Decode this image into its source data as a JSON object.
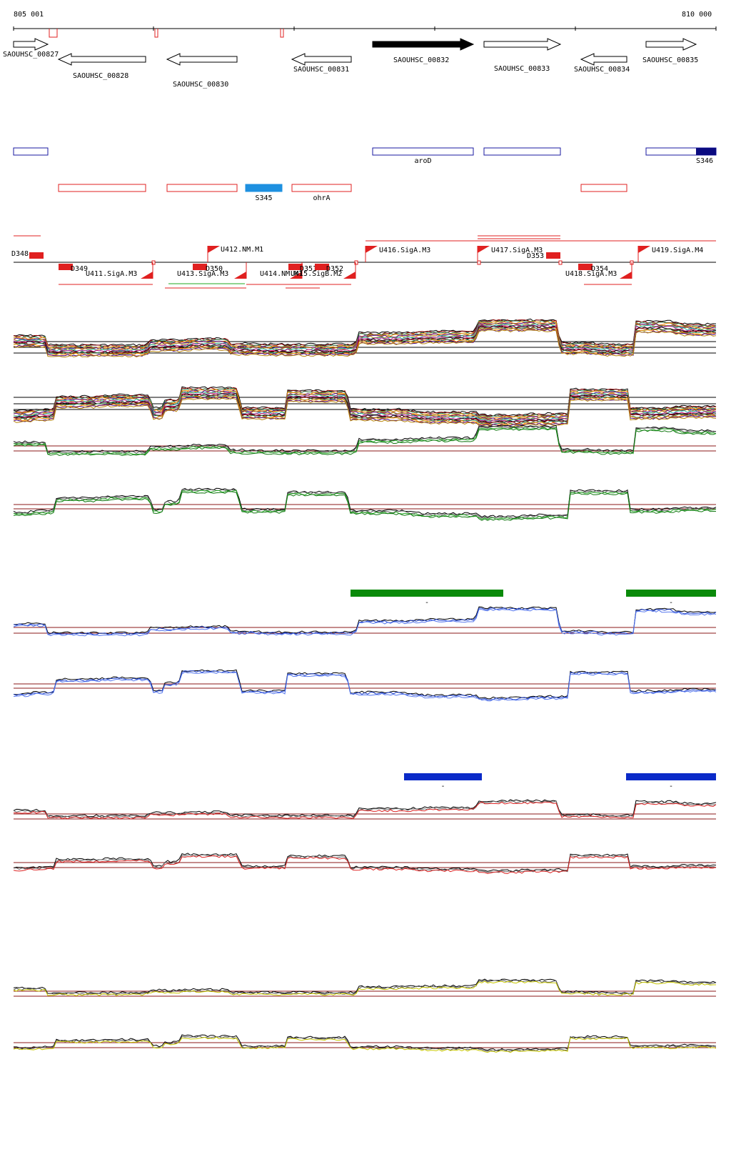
{
  "ruler": {
    "start_label": "805 001",
    "end_label": "810 000"
  },
  "genes": [
    {
      "name": "SAOUHSC_00827",
      "strand": "+",
      "filled": false
    },
    {
      "name": "SAOUHSC_00828",
      "strand": "-",
      "filled": false
    },
    {
      "name": "SAOUHSC_00830",
      "strand": "-",
      "filled": false
    },
    {
      "name": "SAOUHSC_00831",
      "strand": "-",
      "filled": false
    },
    {
      "name": "SAOUHSC_00832",
      "strand": "+",
      "filled": true
    },
    {
      "name": "SAOUHSC_00833",
      "strand": "+",
      "filled": false
    },
    {
      "name": "SAOUHSC_00834",
      "strand": "-",
      "filled": false
    },
    {
      "name": "SAOUHSC_00835",
      "strand": "+",
      "filled": false
    }
  ],
  "features_plus": [
    {
      "label": "",
      "color": "#1a1aa0"
    },
    {
      "label": "aroD",
      "color": "#1a1aa0"
    },
    {
      "label": "",
      "color": "#1a1aa0"
    },
    {
      "label": "S346",
      "color": "#1a1aa0"
    }
  ],
  "features_minus": [
    {
      "label": "",
      "color": "#e02020"
    },
    {
      "label": "",
      "color": "#e02020"
    },
    {
      "label": "S345",
      "color": "#1e90e0"
    },
    {
      "label": "ohrA",
      "color": "#e02020"
    },
    {
      "label": "",
      "color": "#e02020"
    }
  ],
  "promoters_top": [
    {
      "label": "D348"
    },
    {
      "label": "U412.NM.M1"
    },
    {
      "label": "U416.SigA.M3"
    },
    {
      "label": "U417.SigA.M3"
    },
    {
      "label": "D353"
    },
    {
      "label": "U419.SigA.M4"
    }
  ],
  "promoters_bottom": [
    {
      "label": "D349"
    },
    {
      "label": "U411.SigA.M3"
    },
    {
      "label": "D350"
    },
    {
      "label": "U413.SigA.M3"
    },
    {
      "label": "U414.NM.M1"
    },
    {
      "label": "D351"
    },
    {
      "label": "U415.SigB.M2"
    },
    {
      "label": "D352"
    },
    {
      "label": "D354"
    },
    {
      "label": "U418.SigA.M3"
    }
  ],
  "colors": {
    "gene_outline": "#000000",
    "plus_feature": "#1a1aa0",
    "minus_feature": "#e02020",
    "green_bar": "#0a8a0a",
    "blue_bar": "#0a2ac8",
    "guide_line": "#8b1a1a",
    "track_black": "#000000"
  },
  "condition_bars": [
    {
      "color": "#0a8a0a",
      "label": "-"
    },
    {
      "color": "#0a8a0a",
      "label": "-"
    },
    {
      "color": "#0a2ac8",
      "label": "-"
    },
    {
      "color": "#0a2ac8",
      "label": "-"
    }
  ],
  "tracks": [
    {
      "name": "multi-plus",
      "colors": [
        "#000000",
        "#8b0000",
        "#2e8b57",
        "#ff8c00",
        "#4b0082",
        "#b8860b",
        "#20b2aa",
        "#c71585"
      ]
    },
    {
      "name": "multi-minus",
      "colors": [
        "#000000",
        "#8b0000",
        "#2e8b57",
        "#ff8c00",
        "#4b0082",
        "#b8860b",
        "#20b2aa",
        "#c71585"
      ]
    },
    {
      "name": "green-plus",
      "colors": [
        "#000000",
        "#555555",
        "#22aa22",
        "#117711"
      ]
    },
    {
      "name": "green-minus",
      "colors": [
        "#000000",
        "#555555",
        "#22aa22",
        "#117711"
      ]
    },
    {
      "name": "blue-plus",
      "colors": [
        "#000000",
        "#2244cc",
        "#5577ee"
      ]
    },
    {
      "name": "blue-minus",
      "colors": [
        "#000000",
        "#2244cc",
        "#5577ee"
      ]
    },
    {
      "name": "red-plus",
      "colors": [
        "#000000",
        "#666666",
        "#dd2222"
      ]
    },
    {
      "name": "red-minus",
      "colors": [
        "#000000",
        "#666666",
        "#dd2222"
      ]
    },
    {
      "name": "yellow-plus",
      "colors": [
        "#000000",
        "#555555",
        "#c8c800"
      ]
    },
    {
      "name": "yellow-minus",
      "colors": [
        "#000000",
        "#555555",
        "#c8c800"
      ]
    }
  ]
}
